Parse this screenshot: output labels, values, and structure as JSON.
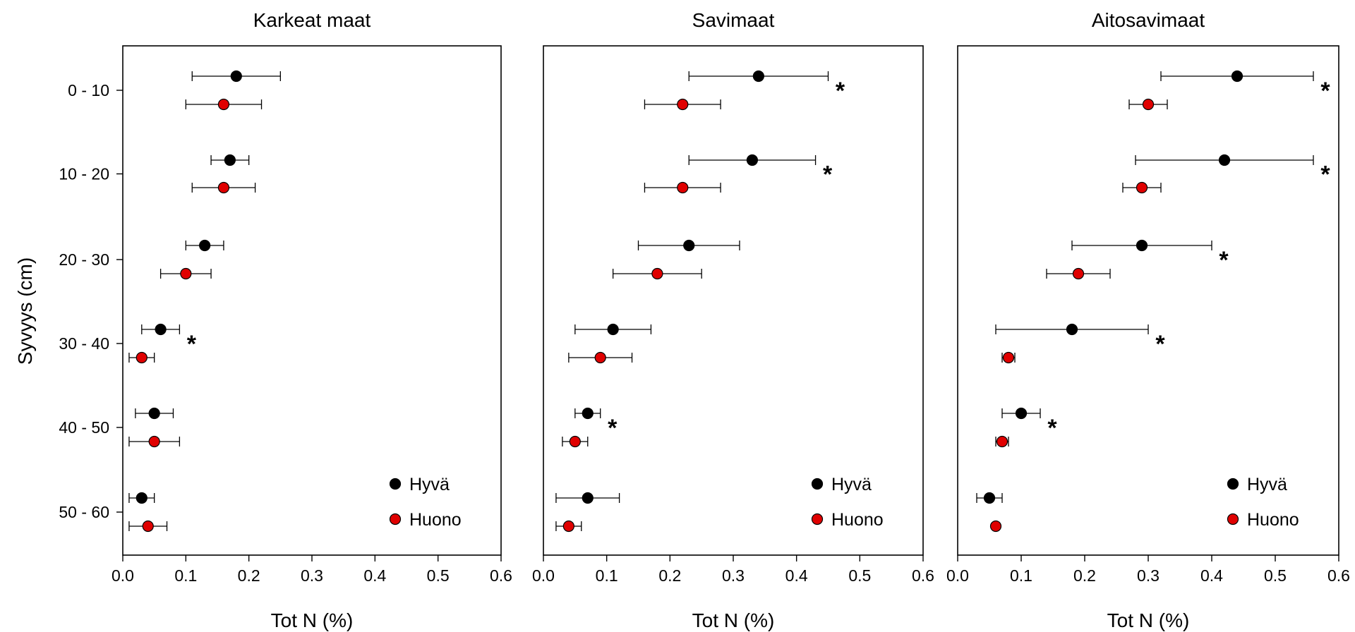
{
  "ylabel": "Syvyys (cm)",
  "depth_labels": [
    "0 - 10",
    "10 - 20",
    "20 - 30",
    "30 - 40",
    "40 - 50",
    "50 - 60"
  ],
  "legend": [
    "Hyvä",
    "Huono"
  ],
  "colors": {
    "hyva": "#000000",
    "huono": "#e00000",
    "axis": "#000000"
  },
  "chart_data": [
    {
      "type": "scatter",
      "title": "Karkeat maat",
      "xlabel": "Tot N (%)",
      "xlim": [
        0,
        0.6
      ],
      "xticks": [
        "0.0",
        "0.1",
        "0.2",
        "0.3",
        "0.4",
        "0.5",
        "0.6"
      ],
      "categories": [
        "0 - 10",
        "10 - 20",
        "20 - 30",
        "30 - 40",
        "40 - 50",
        "50 - 60"
      ],
      "series": [
        {
          "name": "Hyvä",
          "values": [
            0.18,
            0.17,
            0.13,
            0.06,
            0.05,
            0.03
          ],
          "err_low": [
            0.11,
            0.14,
            0.1,
            0.03,
            0.02,
            0.01
          ],
          "err_high": [
            0.25,
            0.2,
            0.16,
            0.09,
            0.08,
            0.05
          ]
        },
        {
          "name": "Huono",
          "values": [
            0.16,
            0.16,
            0.1,
            0.03,
            0.05,
            0.04
          ],
          "err_low": [
            0.1,
            0.11,
            0.06,
            0.01,
            0.01,
            0.01
          ],
          "err_high": [
            0.22,
            0.21,
            0.14,
            0.05,
            0.09,
            0.07
          ]
        }
      ],
      "significance": [
        "",
        "",
        "",
        "*",
        "",
        ""
      ]
    },
    {
      "type": "scatter",
      "title": "Savimaat",
      "xlabel": "Tot N (%)",
      "xlim": [
        0,
        0.6
      ],
      "xticks": [
        "0.0",
        "0.1",
        "0.2",
        "0.3",
        "0.4",
        "0.5",
        "0.6"
      ],
      "categories": [
        "0 - 10",
        "10 - 20",
        "20 - 30",
        "30 - 40",
        "40 - 50",
        "50 - 60"
      ],
      "series": [
        {
          "name": "Hyvä",
          "values": [
            0.34,
            0.33,
            0.23,
            0.11,
            0.07,
            0.07
          ],
          "err_low": [
            0.23,
            0.23,
            0.15,
            0.05,
            0.05,
            0.02
          ],
          "err_high": [
            0.45,
            0.43,
            0.31,
            0.17,
            0.09,
            0.12
          ]
        },
        {
          "name": "Huono",
          "values": [
            0.22,
            0.22,
            0.18,
            0.09,
            0.05,
            0.04
          ],
          "err_low": [
            0.16,
            0.16,
            0.11,
            0.04,
            0.03,
            0.02
          ],
          "err_high": [
            0.28,
            0.28,
            0.25,
            0.14,
            0.07,
            0.06
          ]
        }
      ],
      "significance": [
        "*",
        "*",
        "",
        "",
        "*",
        ""
      ]
    },
    {
      "type": "scatter",
      "title": "Aitosavimaat",
      "xlabel": "Tot N (%)",
      "xlim": [
        0,
        0.6
      ],
      "xticks": [
        "0.0",
        "0.1",
        "0.2",
        "0.3",
        "0.4",
        "0.5",
        "0.6"
      ],
      "categories": [
        "0 - 10",
        "10 - 20",
        "20 - 30",
        "30 - 40",
        "40 - 50",
        "50 - 60"
      ],
      "series": [
        {
          "name": "Hyvä",
          "values": [
            0.44,
            0.42,
            0.29,
            0.18,
            0.1,
            0.05
          ],
          "err_low": [
            0.32,
            0.28,
            0.18,
            0.06,
            0.07,
            0.03
          ],
          "err_high": [
            0.56,
            0.56,
            0.4,
            0.3,
            0.13,
            0.07
          ]
        },
        {
          "name": "Huono",
          "values": [
            0.3,
            0.29,
            0.19,
            0.08,
            0.07,
            0.06
          ],
          "err_low": [
            0.27,
            0.26,
            0.14,
            0.07,
            0.06,
            0.06
          ],
          "err_high": [
            0.33,
            0.32,
            0.24,
            0.09,
            0.08,
            0.06
          ]
        }
      ],
      "significance": [
        "*",
        "*",
        "*",
        "*",
        "*",
        ""
      ]
    }
  ]
}
